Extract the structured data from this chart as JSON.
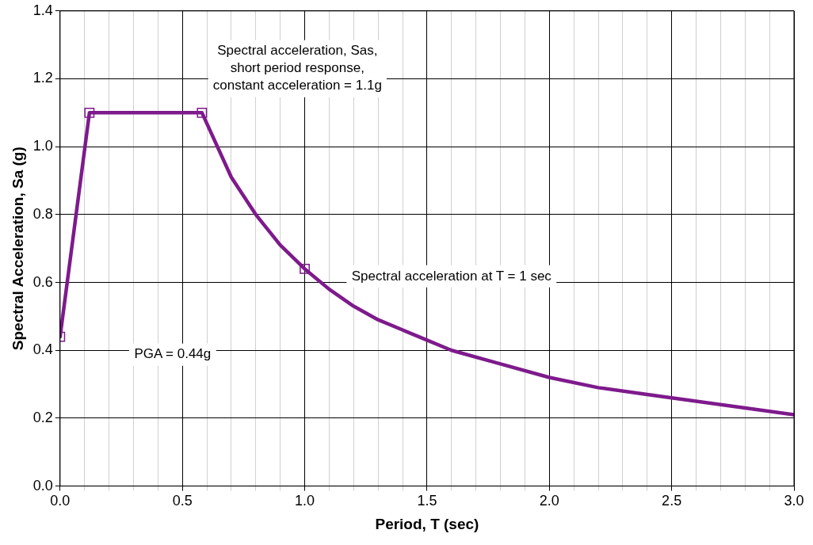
{
  "chart_data": {
    "type": "line",
    "xlabel": "Period, T (sec)",
    "ylabel": "Spectral Acceleration, Sa (g)",
    "xlim": [
      0,
      3
    ],
    "ylim": [
      0,
      1.4
    ],
    "xticks": [
      {
        "value": 0,
        "label": "0.0"
      },
      {
        "value": 0.1,
        "label": null
      },
      {
        "value": 0.2,
        "label": null
      },
      {
        "value": 0.3,
        "label": null
      },
      {
        "value": 0.4,
        "label": null
      },
      {
        "value": 0.5,
        "label": "0.5"
      },
      {
        "value": 0.6,
        "label": null
      },
      {
        "value": 0.7,
        "label": null
      },
      {
        "value": 0.8,
        "label": null
      },
      {
        "value": 0.9,
        "label": null
      },
      {
        "value": 1,
        "label": "1.0"
      },
      {
        "value": 1.1,
        "label": null
      },
      {
        "value": 1.2,
        "label": null
      },
      {
        "value": 1.3,
        "label": null
      },
      {
        "value": 1.4,
        "label": null
      },
      {
        "value": 1.5,
        "label": "1.5"
      },
      {
        "value": 1.6,
        "label": null
      },
      {
        "value": 1.7,
        "label": null
      },
      {
        "value": 1.8,
        "label": null
      },
      {
        "value": 1.9,
        "label": null
      },
      {
        "value": 2,
        "label": "2.0"
      },
      {
        "value": 2.1,
        "label": null
      },
      {
        "value": 2.2,
        "label": null
      },
      {
        "value": 2.3,
        "label": null
      },
      {
        "value": 2.4,
        "label": null
      },
      {
        "value": 2.5,
        "label": "2.5"
      },
      {
        "value": 2.6,
        "label": null
      },
      {
        "value": 2.7,
        "label": null
      },
      {
        "value": 2.8,
        "label": null
      },
      {
        "value": 2.9,
        "label": null
      },
      {
        "value": 3,
        "label": "3.0"
      }
    ],
    "yticks": [
      {
        "value": 0,
        "label": "0.0"
      },
      {
        "value": 0.2,
        "label": "0.2"
      },
      {
        "value": 0.4,
        "label": "0.4"
      },
      {
        "value": 0.6,
        "label": "0.6"
      },
      {
        "value": 0.8,
        "label": "0.8"
      },
      {
        "value": 1,
        "label": "1.0"
      },
      {
        "value": 1.2,
        "label": "1.2"
      },
      {
        "value": 1.4,
        "label": "1.4"
      }
    ],
    "grid": true,
    "legend": false,
    "series": [
      {
        "type": "line",
        "color": "#7e1a8c",
        "marker": "none",
        "line_style": "solid",
        "x": [
          0,
          0.12,
          0.58,
          0.7,
          0.8,
          0.9,
          1.0,
          1.1,
          1.2,
          1.3,
          1.4,
          1.5,
          1.6,
          1.8,
          2.0,
          2.2,
          2.4,
          2.6,
          2.8,
          3.0
        ],
        "values": [
          0.44,
          1.1,
          1.1,
          0.91,
          0.8,
          0.71,
          0.64,
          0.58,
          0.53,
          0.49,
          0.46,
          0.43,
          0.4,
          0.36,
          0.32,
          0.29,
          0.27,
          0.25,
          0.23,
          0.21
        ]
      },
      {
        "type": "scatter",
        "color": "#7e1a8c",
        "marker": "square",
        "x": [
          0,
          0.12,
          0.58,
          1.0
        ],
        "values": [
          0.44,
          1.1,
          1.1,
          0.64
        ]
      }
    ],
    "annotations": [
      "Spectral acceleration, Sas,\nshort period response,\nconstant acceleration = 1.1g",
      "Spectral acceleration at T = 1 sec",
      "PGA = 0.44g"
    ]
  }
}
